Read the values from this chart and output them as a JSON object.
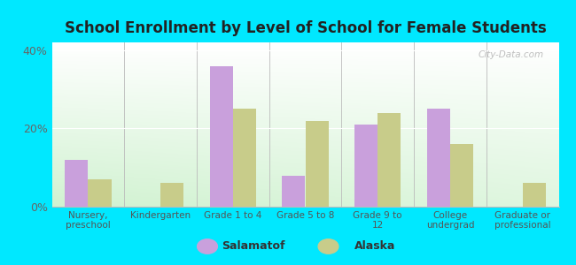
{
  "title": "School Enrollment by Level of School for Female Students",
  "categories": [
    "Nursery,\npreschool",
    "Kindergarten",
    "Grade 1 to 4",
    "Grade 5 to 8",
    "Grade 9 to\n12",
    "College\nundergrad",
    "Graduate or\nprofessional"
  ],
  "salamatof": [
    12,
    0,
    36,
    8,
    21,
    25,
    0
  ],
  "alaska": [
    7,
    6,
    25,
    22,
    24,
    16,
    6
  ],
  "salamatof_color": "#c9a0dc",
  "alaska_color": "#c8cc8a",
  "ylim": [
    0,
    42
  ],
  "yticks": [
    0,
    20,
    40
  ],
  "ytick_labels": [
    "0%",
    "20%",
    "40%"
  ],
  "bar_width": 0.32,
  "legend_salamatof": "Salamatof",
  "legend_alaska": "Alaska",
  "background_color_fig": "#00e8ff",
  "watermark": "City-Data.com"
}
